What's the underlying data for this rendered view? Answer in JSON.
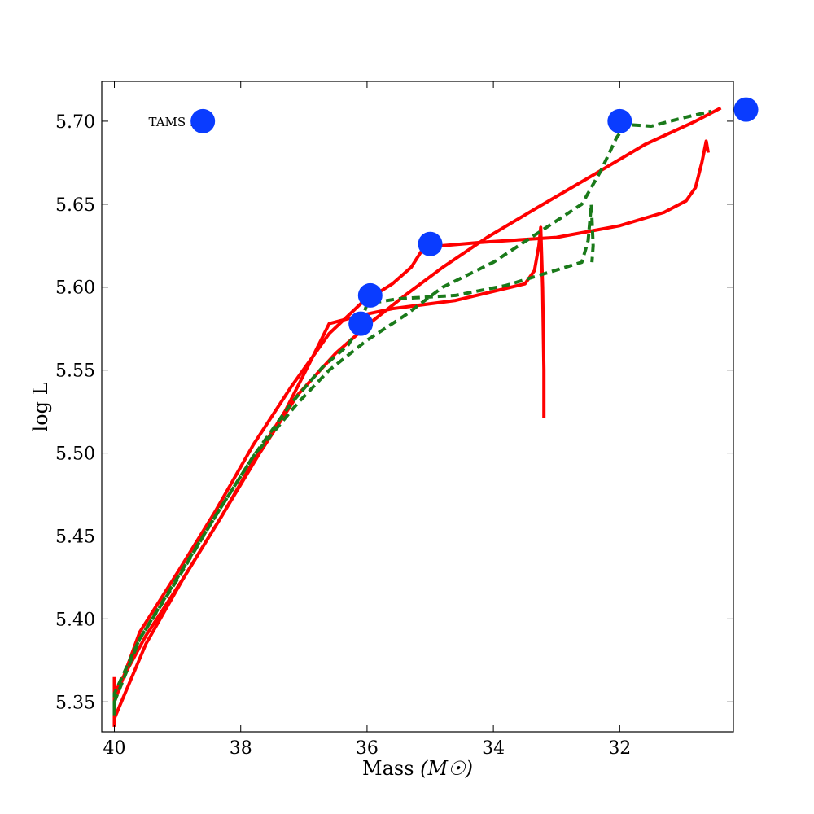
{
  "chart_data": {
    "type": "line",
    "title": "",
    "xlabel": "Mass",
    "xlabel_unit": "(M☉)",
    "ylabel": "log L",
    "xlim": [
      40.2,
      30.2
    ],
    "ylim": [
      5.332,
      5.724
    ],
    "x_reversed": true,
    "grid": false,
    "x_ticks": [
      40,
      38,
      36,
      34,
      32
    ],
    "x_tick_labels": [
      "40",
      "38",
      "36",
      "34",
      "32"
    ],
    "y_ticks": [
      5.35,
      5.4,
      5.45,
      5.5,
      5.55,
      5.6,
      5.65,
      5.7
    ],
    "y_tick_labels": [
      "5.35",
      "5.40",
      "5.45",
      "5.50",
      "5.55",
      "5.60",
      "5.65",
      "5.70"
    ],
    "legend": {
      "label": "TAMS :",
      "marker_color": "#0a3cff",
      "position": "top-left"
    },
    "series": [
      {
        "style": "solid",
        "color": "#ff0000",
        "points": [
          [
            40.0,
            5.335
          ],
          [
            40.0,
            5.355
          ],
          [
            39.5,
            5.39
          ],
          [
            38.9,
            5.425
          ],
          [
            38.3,
            5.462
          ],
          [
            37.8,
            5.495
          ],
          [
            37.3,
            5.525
          ],
          [
            36.9,
            5.555
          ],
          [
            36.6,
            5.578
          ],
          [
            36.1,
            5.583
          ],
          [
            35.6,
            5.587
          ],
          [
            34.6,
            5.592
          ],
          [
            33.5,
            5.602
          ],
          [
            33.35,
            5.61
          ],
          [
            33.28,
            5.625
          ],
          [
            33.25,
            5.636
          ],
          [
            33.22,
            5.6
          ],
          [
            33.2,
            5.55
          ],
          [
            33.2,
            5.521
          ]
        ]
      },
      {
        "style": "solid",
        "color": "#ff0000",
        "points": [
          [
            40.0,
            5.365
          ],
          [
            40.0,
            5.35
          ],
          [
            39.6,
            5.392
          ],
          [
            39.0,
            5.428
          ],
          [
            38.4,
            5.465
          ],
          [
            37.8,
            5.505
          ],
          [
            37.2,
            5.54
          ],
          [
            36.6,
            5.572
          ],
          [
            36.1,
            5.59
          ],
          [
            35.6,
            5.602
          ],
          [
            35.3,
            5.612
          ],
          [
            35.1,
            5.624
          ],
          [
            34.2,
            5.627
          ],
          [
            33.0,
            5.63
          ],
          [
            32.0,
            5.637
          ],
          [
            31.3,
            5.645
          ],
          [
            30.95,
            5.652
          ],
          [
            30.8,
            5.66
          ],
          [
            30.7,
            5.675
          ],
          [
            30.63,
            5.688
          ],
          [
            30.6,
            5.681
          ]
        ]
      },
      {
        "style": "solid",
        "color": "#ff0000",
        "points": [
          [
            40.0,
            5.355
          ],
          [
            40.0,
            5.34
          ],
          [
            39.5,
            5.385
          ],
          [
            38.9,
            5.425
          ],
          [
            38.3,
            5.462
          ],
          [
            37.7,
            5.5
          ],
          [
            37.1,
            5.535
          ],
          [
            36.5,
            5.56
          ],
          [
            35.9,
            5.58
          ],
          [
            35.4,
            5.595
          ],
          [
            34.8,
            5.612
          ],
          [
            34.1,
            5.63
          ],
          [
            33.3,
            5.648
          ],
          [
            32.4,
            5.668
          ],
          [
            31.6,
            5.686
          ],
          [
            30.8,
            5.7
          ],
          [
            30.4,
            5.708
          ]
        ]
      },
      {
        "style": "dashed",
        "color": "#1a7a1a",
        "points": [
          [
            40.0,
            5.342
          ],
          [
            40.0,
            5.35
          ],
          [
            39.6,
            5.388
          ],
          [
            39.0,
            5.424
          ],
          [
            38.4,
            5.462
          ],
          [
            37.8,
            5.498
          ],
          [
            37.2,
            5.53
          ],
          [
            36.7,
            5.552
          ],
          [
            36.3,
            5.565
          ],
          [
            36.1,
            5.578
          ],
          [
            36.0,
            5.59
          ],
          [
            35.5,
            5.593
          ],
          [
            34.6,
            5.595
          ],
          [
            33.8,
            5.601
          ],
          [
            33.2,
            5.608
          ],
          [
            32.6,
            5.615
          ],
          [
            32.5,
            5.628
          ],
          [
            32.45,
            5.65
          ],
          [
            32.42,
            5.625
          ],
          [
            32.44,
            5.615
          ]
        ]
      },
      {
        "style": "dashed",
        "color": "#1a7a1a",
        "points": [
          [
            40.0,
            5.345
          ],
          [
            40.0,
            5.355
          ],
          [
            39.6,
            5.388
          ],
          [
            39.0,
            5.425
          ],
          [
            38.4,
            5.462
          ],
          [
            37.8,
            5.498
          ],
          [
            37.1,
            5.53
          ],
          [
            36.6,
            5.55
          ],
          [
            36.0,
            5.568
          ],
          [
            35.4,
            5.583
          ],
          [
            34.8,
            5.6
          ],
          [
            34.0,
            5.615
          ],
          [
            33.4,
            5.63
          ],
          [
            32.6,
            5.65
          ],
          [
            32.3,
            5.67
          ],
          [
            32.05,
            5.69
          ],
          [
            31.9,
            5.698
          ],
          [
            31.5,
            5.697
          ],
          [
            31.0,
            5.702
          ],
          [
            30.55,
            5.706
          ]
        ]
      }
    ],
    "tams_points": [
      [
        36.1,
        5.578
      ],
      [
        35.95,
        5.595
      ],
      [
        35.0,
        5.626
      ],
      [
        32.0,
        5.7
      ],
      [
        30.0,
        5.707
      ]
    ],
    "legend_marker_point": [
      38.6,
      5.7
    ]
  }
}
